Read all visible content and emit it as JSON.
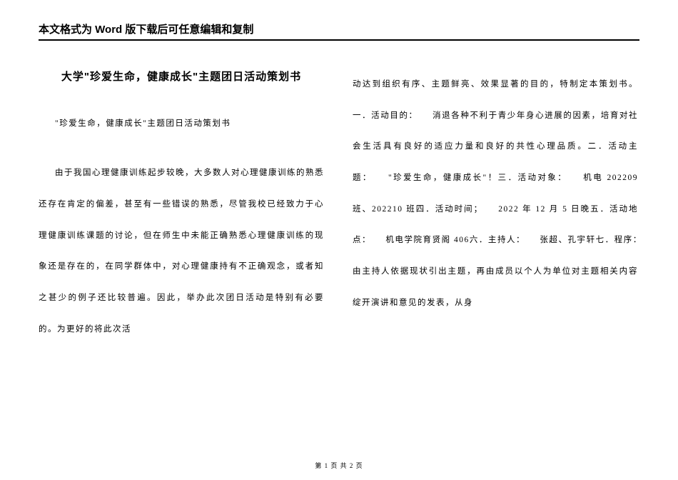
{
  "header": {
    "notice": "本文格式为 Word 版下载后可任意编辑和复制"
  },
  "left": {
    "title": "大学\"珍爱生命，健康成长\"主题团日活动策划书",
    "p1": "\"珍爱生命，健康成长\"主题团日活动策划书",
    "p2": "由于我国心理健康训练起步较晚，大多数人对心理健康训练的熟悉还存在肯定的偏差，甚至有一些错误的熟悉，尽管我校已经致力于心理健康训练课题的讨论，但在师生中未能正确熟悉心理健康训练的现象还是存在的，在同学群体中，对心理健康持有不正确观念，或者知之甚少的例子还比较普遍。因此，举办此次团日活动是特别有必要的。为更好的将此次活"
  },
  "right": {
    "p1": "动达到组织有序、主题鲜亮、效果显著的目的，特制定本策划书。一．活动目的：　　消退各种不利于青少年身心进展的因素，培育对社会生活具有良好的适应力量和良好的共性心理品质。二．活动主题：　　\"珍爱生命，健康成长\"！三．活动对象：　　机电 202209 班、202210 班四．活动时间；　　2022 年 12 月 5 日晚五．活动地点：　　机电学院育贤阁 406六．主持人：　　张超、孔宇轩七．程序：　　由主持人依据现状引出主题，再由成员以个人为单位对主题相关内容绽开演讲和意见的发表，从身"
  },
  "footer": {
    "text": "第 1 页 共 2 页"
  },
  "colors": {
    "text": "#000000",
    "background": "#ffffff",
    "border": "#000000"
  }
}
